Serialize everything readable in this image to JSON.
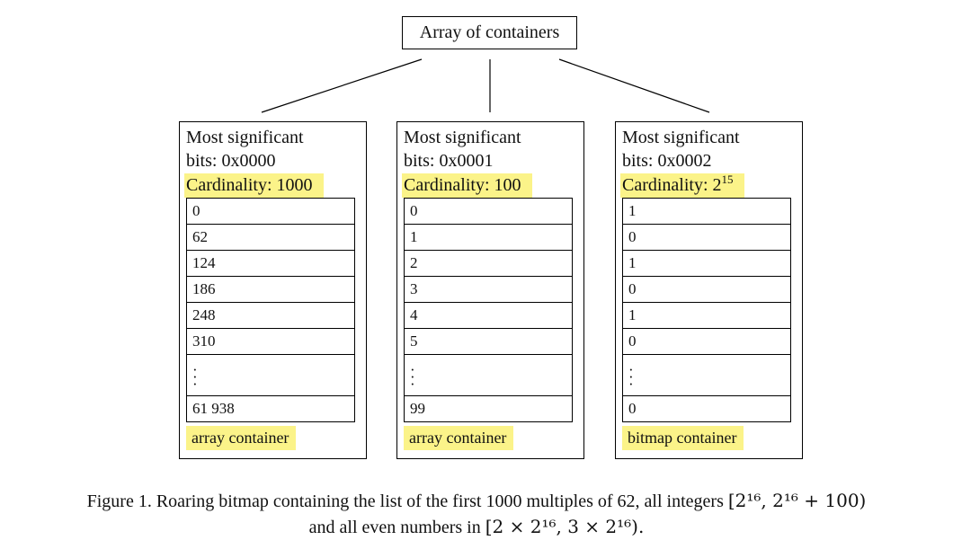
{
  "root": {
    "label": "Array of containers"
  },
  "containers": [
    {
      "header_line1": "Most significant",
      "header_line2": "bits: 0x0000",
      "cardinality": "Cardinality: 1000",
      "cardinality_exp": "",
      "cells": [
        "0",
        "62",
        "124",
        "186",
        "248",
        "310"
      ],
      "last_cell": "61 938",
      "type_label": "array container"
    },
    {
      "header_line1": "Most significant",
      "header_line2": "bits: 0x0001",
      "cardinality": "Cardinality: 100",
      "cardinality_exp": "",
      "cells": [
        "0",
        "1",
        "2",
        "3",
        "4",
        "5"
      ],
      "last_cell": "99",
      "type_label": "array container"
    },
    {
      "header_line1": "Most significant",
      "header_line2": "bits: 0x0002",
      "cardinality": "Cardinality: 2",
      "cardinality_exp": "15",
      "cells": [
        "1",
        "0",
        "1",
        "0",
        "1",
        "0"
      ],
      "last_cell": "0",
      "type_label": "bitmap container"
    }
  ],
  "caption": {
    "line1_text": "Figure 1. Roaring bitmap containing the list of the first 1000 multiples of 62, all integers ",
    "line1_math": "[2¹⁶, 2¹⁶ + 100)",
    "line2_text": "and all even numbers in ",
    "line2_math": "[2 × 2¹⁶, 3 × 2¹⁶)."
  },
  "colors": {
    "highlight": "#fbf389",
    "border": "#000000"
  }
}
